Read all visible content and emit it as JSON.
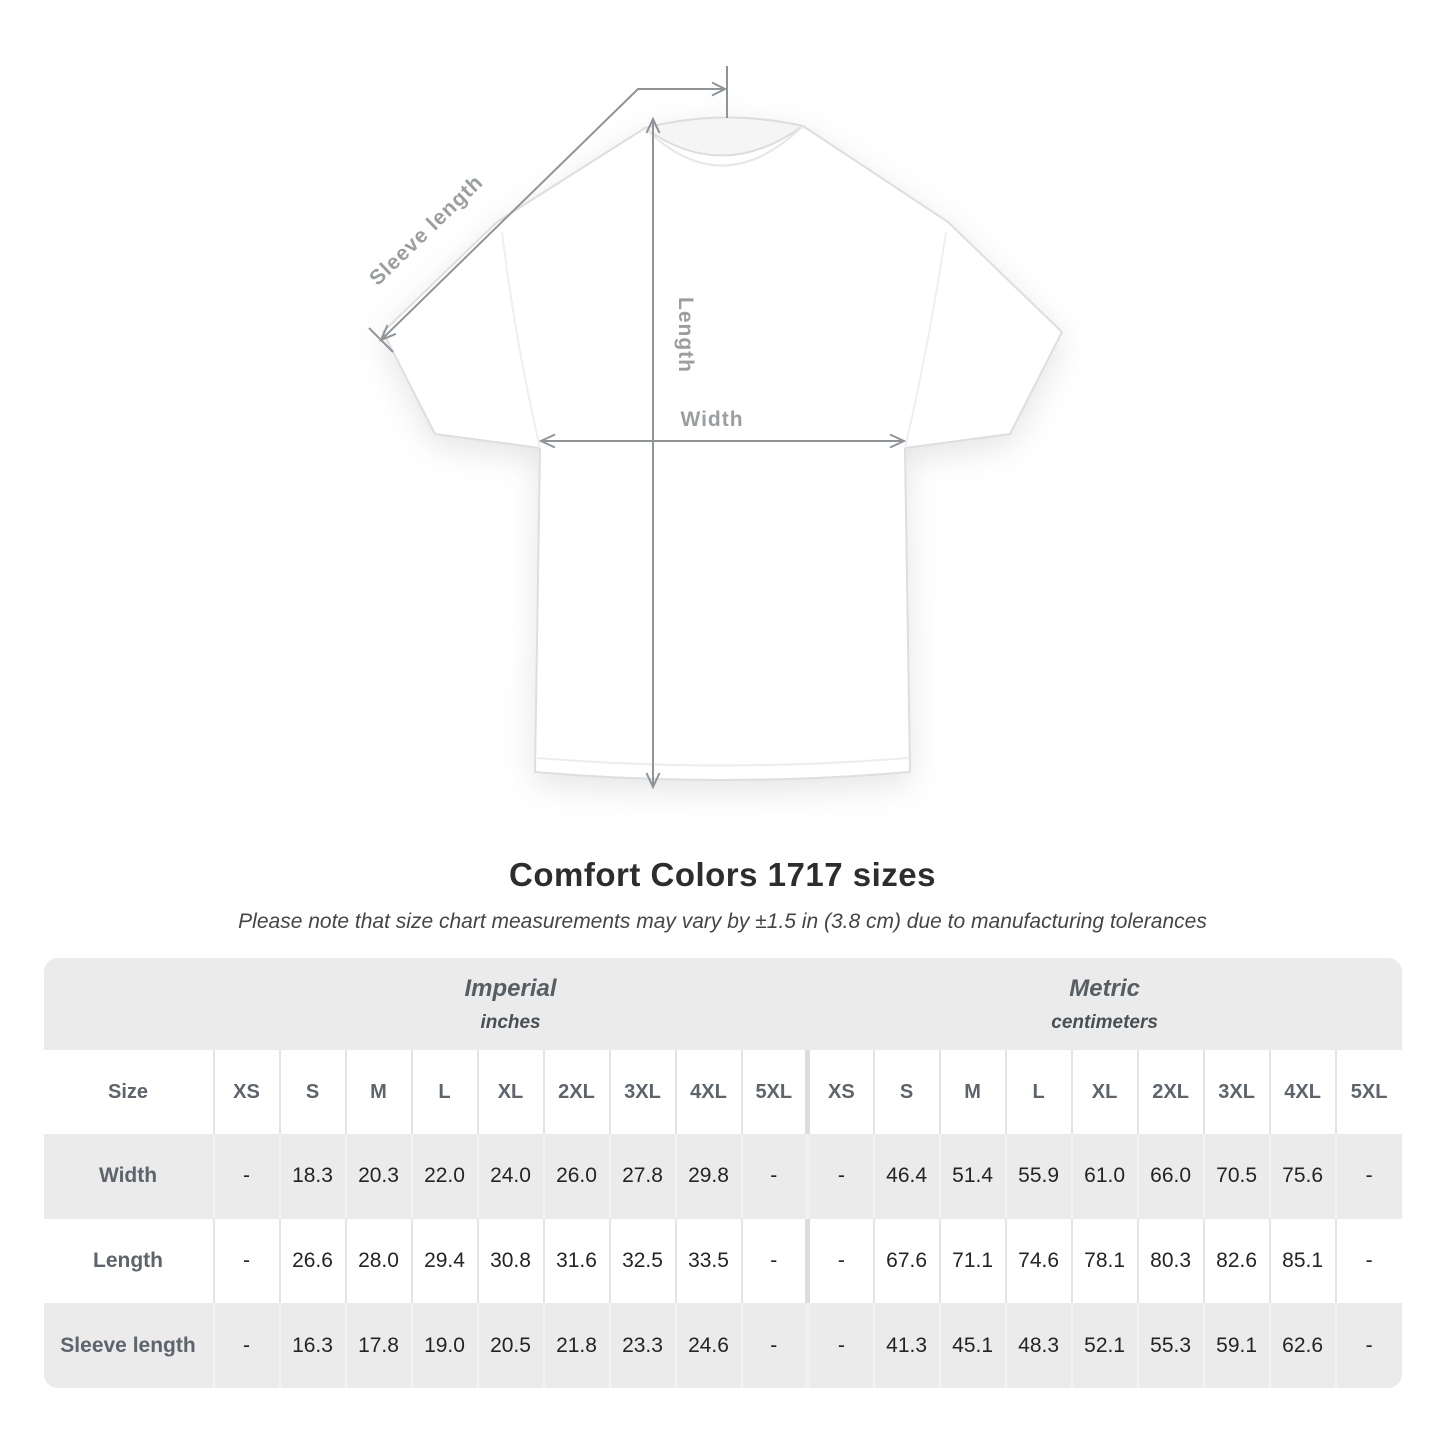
{
  "diagram": {
    "sleeve_label": "Sleeve length",
    "length_label": "Length",
    "width_label": "Width",
    "arrow_color": "#8f9499",
    "label_color": "#9b9ea1"
  },
  "title": "Comfort Colors 1717 sizes",
  "note": "Please note that size chart measurements may vary by ±1.5 in (3.8 cm) due to manufacturing tolerances",
  "chart_data": {
    "type": "table",
    "title": "Comfort Colors 1717 sizes",
    "groups": [
      {
        "name": "Imperial",
        "unit": "inches"
      },
      {
        "name": "Metric",
        "unit": "centimeters"
      }
    ],
    "size_header_label": "Size",
    "size_columns": [
      "XS",
      "S",
      "M",
      "L",
      "XL",
      "2XL",
      "3XL",
      "4XL",
      "5XL"
    ],
    "rows": [
      {
        "label": "Width",
        "imperial": [
          "-",
          "18.3",
          "20.3",
          "22.0",
          "24.0",
          "26.0",
          "27.8",
          "29.8",
          "-"
        ],
        "metric": [
          "-",
          "46.4",
          "51.4",
          "55.9",
          "61.0",
          "66.0",
          "70.5",
          "75.6",
          "-"
        ]
      },
      {
        "label": "Length",
        "imperial": [
          "-",
          "26.6",
          "28.0",
          "29.4",
          "30.8",
          "31.6",
          "32.5",
          "33.5",
          "-"
        ],
        "metric": [
          "-",
          "67.6",
          "71.1",
          "74.6",
          "78.1",
          "80.3",
          "82.6",
          "85.1",
          "-"
        ]
      },
      {
        "label": "Sleeve length",
        "imperial": [
          "-",
          "16.3",
          "17.8",
          "19.0",
          "20.5",
          "21.8",
          "23.3",
          "24.6",
          "-"
        ],
        "metric": [
          "-",
          "41.3",
          "45.1",
          "48.3",
          "52.1",
          "55.3",
          "59.1",
          "62.6",
          "-"
        ]
      }
    ]
  },
  "colors": {
    "table_gray": "#ebebeb",
    "row_white": "#ffffff",
    "header_text": "#5d646b",
    "value_text": "#242424"
  }
}
